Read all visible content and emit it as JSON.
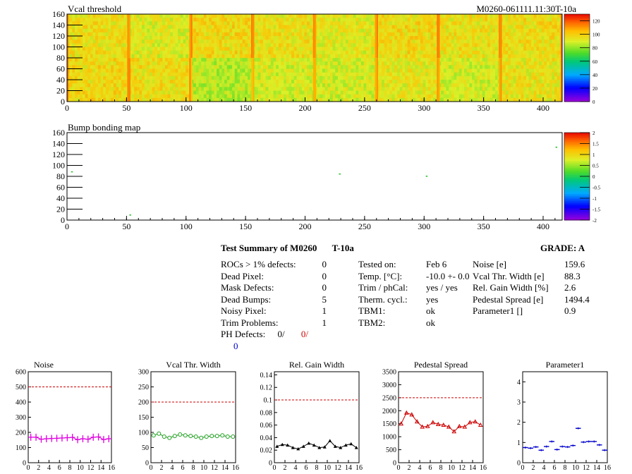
{
  "colors": {
    "magenta": "#e000e0",
    "green": "#1fa01f",
    "black": "#000000",
    "red": "#cc0000",
    "blue": "#0000cc",
    "dashed": "#cc0000"
  },
  "chart_data": [
    {
      "type": "heatmap",
      "title": "Vcal threshold",
      "id_label": "M0260-061111.11:30T-10a",
      "x_ticks": [
        "0",
        "50",
        "100",
        "150",
        "200",
        "250",
        "300",
        "350",
        "400"
      ],
      "y_ticks": [
        "0",
        "20",
        "40",
        "60",
        "80",
        "100",
        "120",
        "140",
        "160"
      ],
      "xlim": [
        0,
        416
      ],
      "ylim": [
        0,
        160
      ],
      "palette_ticks": [
        "0",
        "20",
        "40",
        "60",
        "80",
        "100",
        "120"
      ],
      "zlim": [
        0,
        130
      ],
      "roc_grid": {
        "cols": 8,
        "rows": 2
      },
      "roc_means": [
        [
          96,
          95,
          84,
          88,
          88,
          92,
          88,
          93
        ],
        [
          94,
          90,
          96,
          94,
          91,
          96,
          94,
          95
        ]
      ],
      "colormap": "rainbow"
    },
    {
      "type": "heatmap",
      "title": "Bump bonding map",
      "x_ticks": [
        "0",
        "50",
        "100",
        "150",
        "200",
        "250",
        "300",
        "350",
        "400"
      ],
      "y_ticks": [
        "0",
        "20",
        "40",
        "60",
        "80",
        "100",
        "120",
        "140",
        "160"
      ],
      "xlim": [
        0,
        416
      ],
      "ylim": [
        0,
        160
      ],
      "palette_ticks": [
        "-2",
        "-1.5",
        "-1",
        "-0.5",
        "0",
        "0.5",
        "1",
        "1.5",
        "2"
      ],
      "zlim": [
        -2,
        2
      ],
      "points": [
        {
          "x": 4,
          "y": 88
        },
        {
          "x": 53,
          "y": 9
        },
        {
          "x": 229,
          "y": 84
        },
        {
          "x": 302,
          "y": 80
        },
        {
          "x": 411,
          "y": 133
        }
      ]
    },
    {
      "type": "line",
      "title": "Noise",
      "x_ticks": [
        "0",
        "2",
        "4",
        "6",
        "8",
        "10",
        "12",
        "14",
        "16"
      ],
      "y_ticks": [
        "0",
        "100",
        "200",
        "300",
        "400",
        "500",
        "600"
      ],
      "xlim": [
        0,
        16
      ],
      "ylim": [
        0,
        600
      ],
      "reference": 500,
      "color": "magenta",
      "marker": "plus",
      "x": [
        0,
        1,
        2,
        3,
        4,
        5,
        6,
        7,
        8,
        9,
        10,
        11,
        12,
        13,
        14,
        15
      ],
      "values": [
        168,
        168,
        155,
        158,
        160,
        161,
        163,
        165,
        167,
        152,
        158,
        155,
        168,
        170,
        153,
        158
      ]
    },
    {
      "type": "line",
      "title": "Vcal Thr. Width",
      "x_ticks": [
        "0",
        "2",
        "4",
        "6",
        "8",
        "10",
        "12",
        "14",
        "16"
      ],
      "y_ticks": [
        "0",
        "50",
        "100",
        "150",
        "200",
        "250",
        "300"
      ],
      "xlim": [
        0,
        16
      ],
      "ylim": [
        0,
        300
      ],
      "reference": 200,
      "color": "green",
      "marker": "circle",
      "x": [
        0,
        1,
        2,
        3,
        4,
        5,
        6,
        7,
        8,
        9,
        10,
        11,
        12,
        13,
        14,
        15
      ],
      "values": [
        90,
        96,
        86,
        82,
        88,
        93,
        90,
        88,
        86,
        82,
        86,
        88,
        88,
        90,
        86,
        86
      ]
    },
    {
      "type": "line",
      "title": "Rel. Gain Width",
      "x_ticks": [
        "0",
        "2",
        "4",
        "6",
        "8",
        "10",
        "12",
        "14",
        "16"
      ],
      "y_ticks": [
        "0",
        "0.02",
        "0.04",
        "0.06",
        "0.08",
        "0.1",
        "0.12",
        "0.14"
      ],
      "xlim": [
        0,
        16
      ],
      "ylim": [
        0,
        0.145
      ],
      "reference": 0.1,
      "color": "black",
      "marker": "triangle",
      "x": [
        0,
        1,
        2,
        3,
        4,
        5,
        6,
        7,
        8,
        9,
        10,
        11,
        12,
        13,
        14,
        15
      ],
      "values": [
        0.026,
        0.029,
        0.028,
        0.024,
        0.022,
        0.026,
        0.031,
        0.028,
        0.024,
        0.025,
        0.035,
        0.026,
        0.024,
        0.028,
        0.03,
        0.024
      ]
    },
    {
      "type": "line",
      "title": "Pedestal Spread",
      "x_ticks": [
        "0",
        "2",
        "4",
        "6",
        "8",
        "10",
        "12",
        "14",
        "16"
      ],
      "y_ticks": [
        "0",
        "500",
        "1000",
        "1500",
        "2000",
        "2500",
        "3000",
        "3500"
      ],
      "xlim": [
        0,
        16
      ],
      "ylim": [
        0,
        3500
      ],
      "reference": 2500,
      "color": "red",
      "marker": "triangle-open",
      "x": [
        0,
        1,
        2,
        3,
        4,
        5,
        6,
        7,
        8,
        9,
        10,
        11,
        12,
        13,
        14,
        15
      ],
      "values": [
        1500,
        1920,
        1850,
        1580,
        1380,
        1400,
        1550,
        1480,
        1450,
        1380,
        1200,
        1400,
        1380,
        1550,
        1580,
        1450
      ]
    },
    {
      "type": "line",
      "title": "Parameter1",
      "x_ticks": [
        "0",
        "2",
        "4",
        "6",
        "8",
        "10",
        "12",
        "14",
        "16"
      ],
      "y_ticks": [
        "0",
        "1",
        "2",
        "3",
        "4"
      ],
      "xlim": [
        0,
        16
      ],
      "ylim": [
        0,
        4.5
      ],
      "color": "blue",
      "marker": "hbar",
      "x": [
        0,
        1,
        2,
        3,
        4,
        5,
        6,
        7,
        8,
        9,
        10,
        11,
        12,
        13,
        14,
        15
      ],
      "values": [
        0.75,
        0.72,
        0.78,
        0.62,
        0.8,
        1.05,
        0.65,
        0.8,
        0.78,
        0.85,
        1.7,
        1.02,
        1.05,
        1.05,
        0.88,
        0.62
      ]
    }
  ],
  "summary": {
    "title": "Test Summary of M0260",
    "temp_label": "T-10a",
    "grade": "GRADE:  A",
    "left": [
      {
        "label": "ROCs > 1% defects:",
        "value": "0"
      },
      {
        "label": "Dead Pixel:",
        "value": "0"
      },
      {
        "label": "Mask Defects:",
        "value": "0"
      },
      {
        "label": "Dead Bumps:",
        "value": "5"
      },
      {
        "label": "Noisy Pixel:",
        "value": "1"
      },
      {
        "label": "Trim Problems:",
        "value": "1"
      }
    ],
    "ph_label": "PH Defects:",
    "ph_values": [
      "0/",
      "0/",
      "0"
    ],
    "middle": [
      {
        "label": "Tested on:",
        "value": "Feb 6"
      },
      {
        "label": "Temp. [°C]:",
        "value": "-10.0 +- 0.0"
      },
      {
        "label": "Trim / phCal:",
        "value": "yes / yes"
      },
      {
        "label": "Therm. cycl.:",
        "value": "yes"
      },
      {
        "label": "TBM1:",
        "value": "ok"
      },
      {
        "label": "TBM2:",
        "value": "ok"
      }
    ],
    "right": [
      {
        "label": "Noise [e]",
        "value": "159.6"
      },
      {
        "label": "Vcal Thr. Width [e]",
        "value": "88.3"
      },
      {
        "label": "Rel. Gain Width [%]",
        "value": "2.6"
      },
      {
        "label": "Pedestal Spread [e]",
        "value": "1494.4"
      },
      {
        "label": "Parameter1 []",
        "value": "0.9"
      }
    ]
  }
}
